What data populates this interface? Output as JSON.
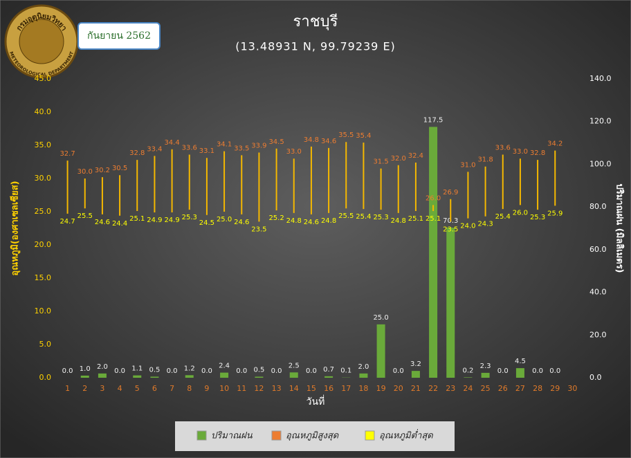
{
  "logo": {
    "thai": "กรมอุตุนิยมวิทยา",
    "english": "METEOROLOGICAL DEPARTMENT"
  },
  "chart_data": {
    "type": "combo",
    "title": "ราชบุรี",
    "subtitle": "(13.48931 N, 99.79239 E)",
    "date_label": "กันยายน 2562",
    "x_label": "วันที่",
    "y_label": "อุณหภูมิ(องศาเซลเซียส)",
    "y2_label": "ปริมาณฝน (มิลลิเมตร)",
    "categories": [
      "1",
      "2",
      "3",
      "4",
      "5",
      "6",
      "7",
      "8",
      "9",
      "10",
      "11",
      "12",
      "13",
      "14",
      "15",
      "16",
      "17",
      "18",
      "19",
      "20",
      "21",
      "22",
      "23",
      "24",
      "25",
      "26",
      "27",
      "28",
      "29",
      "30"
    ],
    "series": [
      {
        "name": "ปริมาณฝน",
        "color": "#6aaa3a",
        "axis": "y2",
        "values": [
          0,
          1,
          2,
          0,
          1.1,
          0.5,
          0,
          1.2,
          0,
          2.4,
          0,
          0.5,
          0,
          2.5,
          0,
          0.7,
          0.1,
          2,
          25,
          0,
          3.2,
          117.5,
          70.3,
          0.2,
          2.3,
          0,
          4.5,
          0,
          0,
          null
        ],
        "value_labels": [
          "0.0",
          "1.0",
          "2.0",
          "0.0",
          "1.1",
          "0.5",
          "0.0",
          "1.2",
          "0.0",
          "2.4",
          "0.0",
          "0.5",
          "0.0",
          "2.5",
          "0.0",
          "0.7",
          "0.1",
          "2.0",
          "25.0",
          "0.0",
          "3.2",
          "117.5",
          "70.3",
          "0.2",
          "2.3",
          "0.0",
          "4.5",
          "0.0",
          "0.0",
          null
        ]
      },
      {
        "name": "อุณหภูมิสูงสุด",
        "color": "#ed7d31",
        "values": [
          32.7,
          30,
          30.2,
          30.5,
          32.8,
          33.4,
          34.4,
          33.6,
          33.1,
          34.1,
          33.5,
          33.9,
          34.5,
          33,
          34.8,
          34.6,
          35.5,
          35.4,
          31.5,
          32,
          32.4,
          26,
          26.9,
          31,
          31.8,
          33.6,
          33,
          32.8,
          34.2,
          null
        ],
        "value_labels": [
          "32.7",
          "30.0",
          "30.2",
          "30.5",
          "32.8",
          "33.4",
          "34.4",
          "33.6",
          "33.1",
          "34.1",
          "33.5",
          "33.9",
          "34.5",
          "33.0",
          "34.8",
          "34.6",
          "35.5",
          "35.4",
          "31.5",
          "32.0",
          "32.4",
          "26.0",
          "26.9",
          "31.0",
          "31.8",
          "33.6",
          "33.0",
          "32.8",
          "34.2",
          null
        ]
      },
      {
        "name": "อุณหภูมิต่ำสุด",
        "color": "#ffff00",
        "values": [
          24.7,
          25.5,
          24.6,
          24.4,
          25.1,
          24.9,
          24.9,
          25.3,
          24.5,
          25,
          24.6,
          23.5,
          25.2,
          24.8,
          24.6,
          24.8,
          25.5,
          25.4,
          25.3,
          24.8,
          25.1,
          25.1,
          23.5,
          24,
          24.3,
          25.4,
          26,
          25.3,
          25.9,
          null
        ],
        "value_labels": [
          "24.7",
          "25.5",
          "24.6",
          "24.4",
          "25.1",
          "24.9",
          "24.9",
          "25.3",
          "24.5",
          "25.0",
          "24.6",
          "23.5",
          "25.2",
          "24.8",
          "24.6",
          "24.8",
          "25.5",
          "25.4",
          "25.3",
          "24.8",
          "25.1",
          "25.1",
          "23.5",
          "24.0",
          "24.3",
          "25.4",
          "26.0",
          "25.3",
          "25.9",
          null
        ]
      }
    ],
    "range_color": "#f5b800",
    "ylim": [
      0,
      45
    ],
    "yticks": [
      {
        "value": 0,
        "label": "0.0"
      },
      {
        "value": 5,
        "label": "5.0"
      },
      {
        "value": 10,
        "label": "10.0"
      },
      {
        "value": 15,
        "label": "15.0"
      },
      {
        "value": 20,
        "label": "20.0"
      },
      {
        "value": 25,
        "label": "25.0"
      },
      {
        "value": 30,
        "label": "30.0"
      },
      {
        "value": 35,
        "label": "35.0"
      },
      {
        "value": 40,
        "label": "40.0"
      },
      {
        "value": 45,
        "label": "45.0"
      }
    ],
    "y2lim": [
      0,
      140
    ],
    "y2ticks": [
      {
        "value": 0,
        "label": "0.0"
      },
      {
        "value": 20,
        "label": "20.0"
      },
      {
        "value": 40,
        "label": "40.0"
      },
      {
        "value": 60,
        "label": "60.0"
      },
      {
        "value": 80,
        "label": "80.0"
      },
      {
        "value": 100,
        "label": "100.0"
      },
      {
        "value": 120,
        "label": "120.0"
      },
      {
        "value": 140,
        "label": "140.0"
      }
    ],
    "legend": "bottom"
  }
}
